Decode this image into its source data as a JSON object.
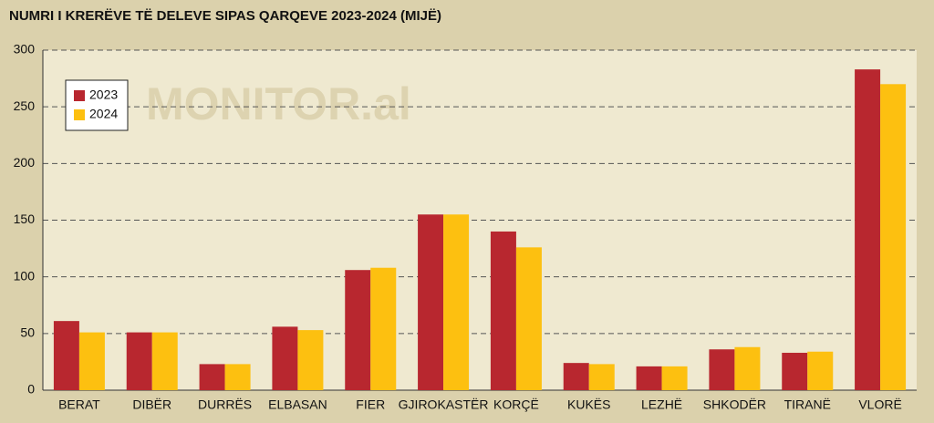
{
  "chart_data": {
    "type": "bar",
    "title": "NUMRI I KRERËVE TË DELEVE SIPAS QARQEVE 2023-2024 (MIJË)",
    "watermark": "MONITOR.al",
    "categories": [
      "BERAT",
      "DIBËR",
      "DURRËS",
      "ELBASAN",
      "FIER",
      "GJIROKASTËR",
      "KORÇË",
      "KUKËS",
      "LEZHË",
      "SHKODËR",
      "TIRANË",
      "VLORË"
    ],
    "series": [
      {
        "name": "2023",
        "color": "#b8272f",
        "values": [
          61,
          51,
          23,
          56,
          106,
          155,
          140,
          24,
          21,
          36,
          33,
          283
        ]
      },
      {
        "name": "2024",
        "color": "#fdc010",
        "values": [
          51,
          51,
          23,
          53,
          108,
          155,
          126,
          23,
          21,
          38,
          34,
          270
        ]
      }
    ],
    "ylim": [
      0,
      300
    ],
    "yticks": [
      0,
      50,
      100,
      150,
      200,
      250,
      300
    ],
    "grid": true,
    "legend": "upper left"
  }
}
